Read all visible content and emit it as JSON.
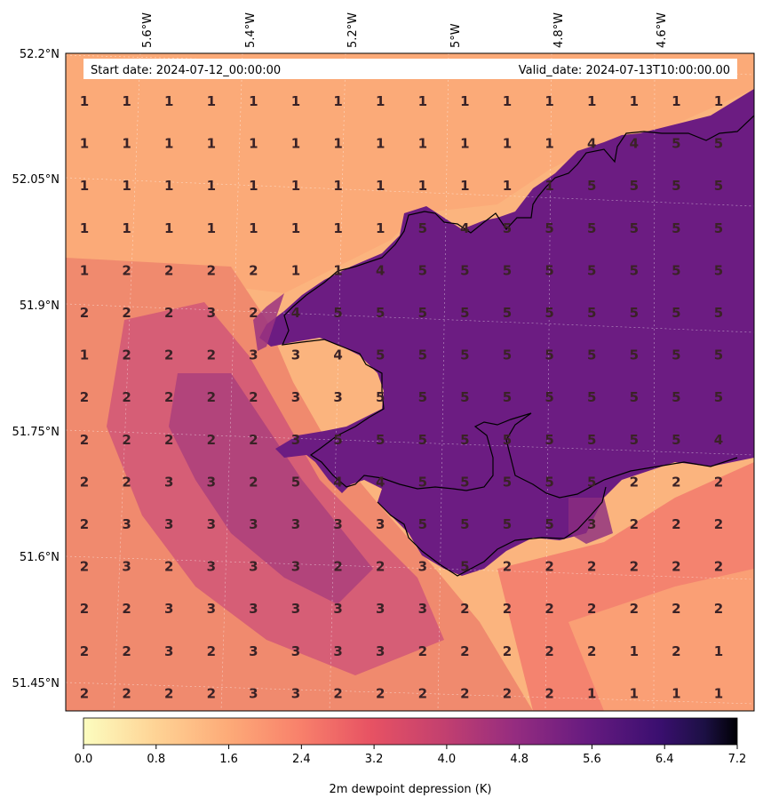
{
  "header": {
    "start_label": "Start date: 2024-07-12_00:00:00",
    "valid_label": "Valid_date: 2024-07-13T10:00:00.00"
  },
  "lon_labels": [
    "5.6°W",
    "5.4°W",
    "5.2°W",
    "5°W",
    "4.8°W",
    "4.6°W"
  ],
  "lat_labels": [
    "52.2°N",
    "52.05°N",
    "51.9°N",
    "51.75°N",
    "51.6°N",
    "51.45°N"
  ],
  "colorbar": {
    "label": "2m dewpoint depression (K)",
    "ticks": [
      "0.0",
      "0.8",
      "1.6",
      "2.4",
      "3.2",
      "4.0",
      "4.8",
      "5.6",
      "6.4",
      "7.2"
    ],
    "range": [
      0,
      7.2
    ],
    "colormap": "magma_r"
  },
  "colors": {
    "low": "#fbb47e",
    "mid_low": "#f8936a",
    "mid": "#e8677a",
    "mid_high": "#b8437e",
    "high": "#6c1c82",
    "coast": "#000000"
  },
  "grid_values": [
    [
      1,
      1,
      1,
      1,
      1,
      1,
      1,
      1,
      1,
      1,
      1,
      1,
      1,
      1,
      1,
      1
    ],
    [
      1,
      1,
      1,
      1,
      1,
      1,
      1,
      1,
      1,
      1,
      1,
      1,
      4,
      4,
      5,
      5
    ],
    [
      1,
      1,
      1,
      1,
      1,
      1,
      1,
      1,
      1,
      1,
      1,
      1,
      5,
      5,
      5,
      5
    ],
    [
      1,
      1,
      1,
      1,
      1,
      1,
      1,
      1,
      5,
      4,
      5,
      5,
      5,
      5,
      5,
      5
    ],
    [
      1,
      2,
      2,
      2,
      2,
      1,
      1,
      4,
      5,
      5,
      5,
      5,
      5,
      5,
      5,
      5
    ],
    [
      2,
      2,
      2,
      3,
      2,
      4,
      5,
      5,
      5,
      5,
      5,
      5,
      5,
      5,
      5,
      5
    ],
    [
      1,
      2,
      2,
      2,
      3,
      3,
      4,
      5,
      5,
      5,
      5,
      5,
      5,
      5,
      5,
      5
    ],
    [
      2,
      2,
      2,
      2,
      2,
      3,
      3,
      5,
      5,
      5,
      5,
      5,
      5,
      5,
      5,
      5
    ],
    [
      2,
      2,
      2,
      2,
      2,
      3,
      5,
      5,
      5,
      5,
      5,
      5,
      5,
      5,
      5,
      4
    ],
    [
      2,
      2,
      3,
      3,
      2,
      5,
      4,
      4,
      5,
      5,
      5,
      5,
      5,
      2,
      2,
      2
    ],
    [
      2,
      3,
      3,
      3,
      3,
      3,
      3,
      3,
      5,
      5,
      5,
      5,
      3,
      2,
      2,
      2
    ],
    [
      2,
      3,
      2,
      3,
      3,
      3,
      2,
      2,
      3,
      5,
      2,
      2,
      2,
      2,
      2,
      2
    ],
    [
      2,
      2,
      3,
      3,
      3,
      3,
      3,
      3,
      3,
      2,
      2,
      2,
      2,
      2,
      2,
      2
    ],
    [
      2,
      2,
      3,
      2,
      3,
      3,
      3,
      3,
      2,
      2,
      2,
      2,
      2,
      1,
      2,
      1
    ],
    [
      2,
      2,
      2,
      2,
      3,
      3,
      2,
      2,
      2,
      2,
      2,
      2,
      1,
      1,
      1,
      1
    ]
  ]
}
